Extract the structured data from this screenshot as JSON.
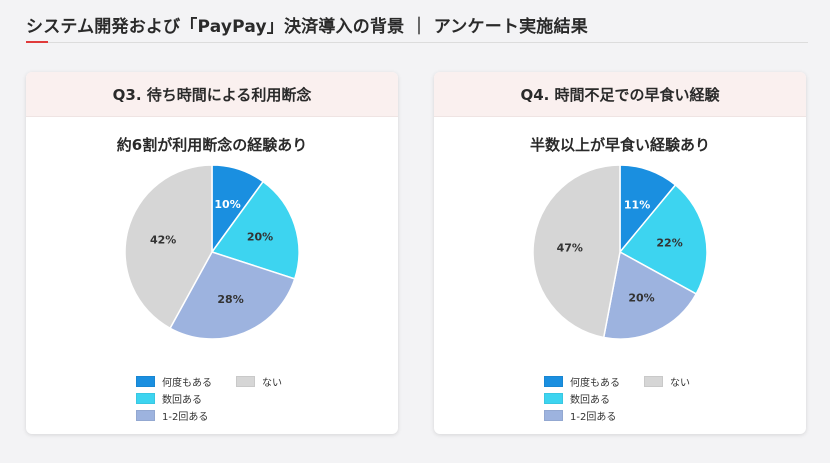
{
  "page": {
    "title": "システム開発および「PayPay」決済導入の背景 ｜ アンケート実施結果"
  },
  "colors": {
    "accent": "#e03a3a",
    "often": "#1a8fe0",
    "several": "#3dd4f0",
    "one_two": "#9db3df",
    "none": "#d6d6d6"
  },
  "chart_data": [
    {
      "type": "pie",
      "card_title": "Q3. 待ち時間による利用断念",
      "title": "約6割が利用断念の経験あり",
      "slices": [
        {
          "label": "何度もある",
          "value": 10,
          "text": "10%"
        },
        {
          "label": "数回ある",
          "value": 20,
          "text": "20%"
        },
        {
          "label": "1-2回ある",
          "value": 28,
          "text": "28%"
        },
        {
          "label": "ない",
          "value": 42,
          "text": "42%"
        }
      ],
      "legend": [
        "何度もある",
        "ない",
        "数回ある",
        "1-2回ある"
      ]
    },
    {
      "type": "pie",
      "card_title": "Q4. 時間不足での早食い経験",
      "title": "半数以上が早食い経験あり",
      "slices": [
        {
          "label": "何度もある",
          "value": 11,
          "text": "11%"
        },
        {
          "label": "数回ある",
          "value": 22,
          "text": "22%"
        },
        {
          "label": "1-2回ある",
          "value": 20,
          "text": "20%"
        },
        {
          "label": "ない",
          "value": 47,
          "text": "47%"
        }
      ],
      "legend": [
        "何度もある",
        "ない",
        "数回ある",
        "1-2回ある"
      ]
    }
  ]
}
